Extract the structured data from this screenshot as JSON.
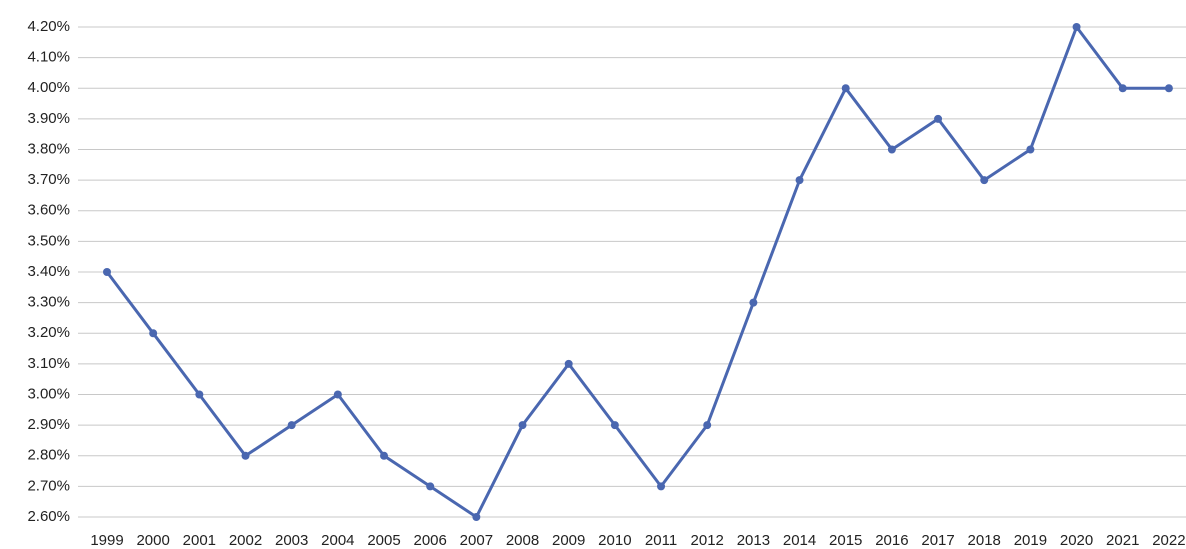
{
  "chart_data": {
    "type": "line",
    "categories": [
      "1999",
      "2000",
      "2001",
      "2002",
      "2003",
      "2004",
      "2005",
      "2006",
      "2007",
      "2008",
      "2009",
      "2010",
      "2011",
      "2012",
      "2013",
      "2014",
      "2015",
      "2016",
      "2017",
      "2018",
      "2019",
      "2020",
      "2021",
      "2022"
    ],
    "values": [
      3.4,
      3.2,
      3.0,
      2.8,
      2.9,
      3.0,
      2.8,
      2.7,
      2.6,
      2.9,
      3.1,
      2.9,
      2.7,
      2.9,
      3.3,
      3.7,
      4.0,
      3.8,
      3.9,
      3.7,
      3.8,
      4.2,
      4.0,
      4.0
    ],
    "color": "#4a67b0",
    "ylim": [
      2.6,
      4.2
    ],
    "yticks": [
      {
        "value": 2.6,
        "label": "2.60%"
      },
      {
        "value": 2.7,
        "label": "2.70%"
      },
      {
        "value": 2.8,
        "label": "2.80%"
      },
      {
        "value": 2.9,
        "label": "2.90%"
      },
      {
        "value": 3.0,
        "label": "3.00%"
      },
      {
        "value": 3.1,
        "label": "3.10%"
      },
      {
        "value": 3.2,
        "label": "3.20%"
      },
      {
        "value": 3.3,
        "label": "3.30%"
      },
      {
        "value": 3.4,
        "label": "3.40%"
      },
      {
        "value": 3.5,
        "label": "3.50%"
      },
      {
        "value": 3.6,
        "label": "3.60%"
      },
      {
        "value": 3.7,
        "label": "3.70%"
      },
      {
        "value": 3.8,
        "label": "3.80%"
      },
      {
        "value": 3.9,
        "label": "3.90%"
      },
      {
        "value": 4.0,
        "label": "4.00%"
      },
      {
        "value": 4.1,
        "label": "4.10%"
      },
      {
        "value": 4.2,
        "label": "4.20%"
      }
    ],
    "grid": true
  }
}
